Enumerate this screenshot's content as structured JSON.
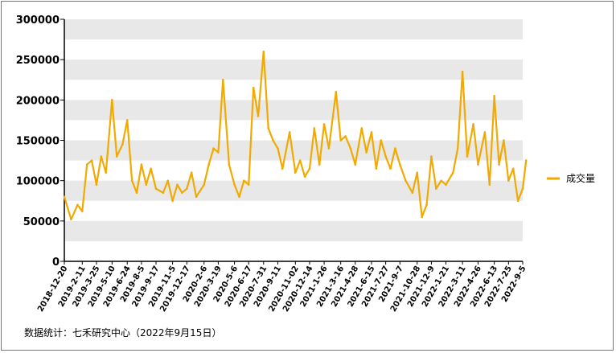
{
  "chart_data": {
    "type": "line",
    "title": "",
    "xlabel": "",
    "ylabel": "",
    "ylim": [
      0,
      300000
    ],
    "yticks": [
      0,
      50000,
      100000,
      150000,
      200000,
      250000,
      300000
    ],
    "ytick_labels": [
      "0",
      "50000",
      "100000",
      "150000",
      "200000",
      "250000",
      "300000"
    ],
    "grid": "horizontal bands, alternating grey and white",
    "legend_position": "right",
    "x_labels": [
      "2018-12-20",
      "2019-2-11",
      "2019-3-25",
      "2019-5-10",
      "2019-6-24",
      "2019-8-5",
      "2019-9-17",
      "2019-11-5",
      "2019-12-17",
      "2020-2-6",
      "2020-3-19",
      "2020-5-6",
      "2020-6-17",
      "2020-7-31",
      "2020-9-11",
      "2020-11-02",
      "2020-12-14",
      "2021-1-26",
      "2021-3-16",
      "2021-4-28",
      "2021-6-15",
      "2021-7-27",
      "2021-9-7",
      "2021-10-28",
      "2021-12-9",
      "2022-1-21",
      "2022-3-11",
      "2022-4-26",
      "2022-6-13",
      "2022-7-25",
      "2022-9-5"
    ],
    "series": [
      {
        "name": "成交量",
        "color": "#F2A900",
        "x": [
          "2018-12-20",
          "2019-1-9",
          "2019-1-28",
          "2019-2-11",
          "2019-2-25",
          "2019-3-11",
          "2019-3-25",
          "2019-4-8",
          "2019-4-22",
          "2019-5-10",
          "2019-5-24",
          "2019-6-10",
          "2019-6-24",
          "2019-7-8",
          "2019-7-22",
          "2019-8-5",
          "2019-8-19",
          "2019-9-2",
          "2019-9-17",
          "2019-10-8",
          "2019-10-22",
          "2019-11-5",
          "2019-11-19",
          "2019-12-3",
          "2019-12-17",
          "2019-12-31",
          "2020-1-14",
          "2020-2-6",
          "2020-2-20",
          "2020-3-5",
          "2020-3-19",
          "2020-4-2",
          "2020-4-20",
          "2020-5-6",
          "2020-5-20",
          "2020-6-3",
          "2020-6-17",
          "2020-7-1",
          "2020-7-15",
          "2020-7-31",
          "2020-8-14",
          "2020-8-28",
          "2020-9-11",
          "2020-9-25",
          "2020-10-16",
          "2020-11-02",
          "2020-11-16",
          "2020-11-30",
          "2020-12-14",
          "2020-12-28",
          "2021-1-12",
          "2021-1-26",
          "2021-2-9",
          "2021-3-2",
          "2021-3-16",
          "2021-3-30",
          "2021-4-14",
          "2021-4-28",
          "2021-5-17",
          "2021-5-31",
          "2021-6-15",
          "2021-6-29",
          "2021-7-13",
          "2021-7-27",
          "2021-8-10",
          "2021-8-24",
          "2021-9-7",
          "2021-9-24",
          "2021-10-14",
          "2021-10-28",
          "2021-11-11",
          "2021-11-25",
          "2021-12-9",
          "2021-12-23",
          "2022-1-7",
          "2022-1-21",
          "2022-2-11",
          "2022-2-25",
          "2022-3-11",
          "2022-3-25",
          "2022-4-12",
          "2022-4-26",
          "2022-5-16",
          "2022-5-30",
          "2022-6-13",
          "2022-6-27",
          "2022-7-11",
          "2022-7-25",
          "2022-8-8",
          "2022-8-22",
          "2022-9-5",
          "2022-9-15"
        ],
        "values": [
          80000,
          52000,
          70000,
          62000,
          120000,
          125000,
          95000,
          130000,
          110000,
          200000,
          130000,
          145000,
          175000,
          100000,
          85000,
          120000,
          95000,
          115000,
          90000,
          85000,
          100000,
          75000,
          95000,
          85000,
          90000,
          110000,
          80000,
          95000,
          120000,
          140000,
          135000,
          225000,
          120000,
          95000,
          80000,
          100000,
          95000,
          215000,
          180000,
          260000,
          165000,
          150000,
          140000,
          115000,
          160000,
          110000,
          125000,
          105000,
          115000,
          165000,
          120000,
          170000,
          140000,
          210000,
          150000,
          155000,
          140000,
          120000,
          165000,
          135000,
          160000,
          115000,
          150000,
          130000,
          115000,
          140000,
          120000,
          100000,
          85000,
          110000,
          55000,
          70000,
          130000,
          90000,
          100000,
          95000,
          110000,
          140000,
          235000,
          130000,
          170000,
          120000,
          160000,
          95000,
          205000,
          120000,
          150000,
          100000,
          115000,
          75000,
          90000,
          125000
        ]
      }
    ],
    "legend": [
      "成交量"
    ]
  },
  "footnote": "数据统计：七禾研究中心（2022年9月15日）"
}
